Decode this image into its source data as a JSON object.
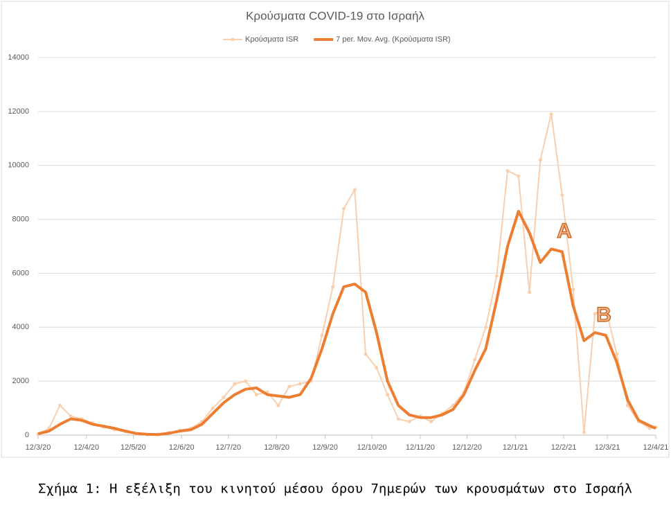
{
  "chart_data": {
    "type": "line",
    "title": "Κρούσματα COVID-19 στο Ισραήλ",
    "caption": "Σχήμα 1: Η εξέλιξη του κινητού μέσου όρου 7ημερών των κρουσμάτων στο Ισραήλ",
    "annotations": [
      "A",
      "B"
    ],
    "x": [
      "2020-03-12",
      "2020-03-19",
      "2020-03-26",
      "2020-04-02",
      "2020-04-09",
      "2020-04-16",
      "2020-04-23",
      "2020-04-30",
      "2020-05-07",
      "2020-05-14",
      "2020-05-21",
      "2020-05-28",
      "2020-06-04",
      "2020-06-11",
      "2020-06-18",
      "2020-06-25",
      "2020-07-02",
      "2020-07-09",
      "2020-07-16",
      "2020-07-23",
      "2020-07-30",
      "2020-08-06",
      "2020-08-13",
      "2020-08-20",
      "2020-08-27",
      "2020-09-03",
      "2020-09-10",
      "2020-09-17",
      "2020-09-24",
      "2020-10-01",
      "2020-10-08",
      "2020-10-15",
      "2020-10-22",
      "2020-10-29",
      "2020-11-05",
      "2020-11-12",
      "2020-11-19",
      "2020-11-26",
      "2020-12-03",
      "2020-12-10",
      "2020-12-17",
      "2020-12-24",
      "2020-12-31",
      "2021-01-07",
      "2021-01-14",
      "2021-01-21",
      "2021-01-28",
      "2021-02-04",
      "2021-02-11",
      "2021-02-18",
      "2021-02-25",
      "2021-03-04",
      "2021-03-11",
      "2021-03-18",
      "2021-03-25",
      "2021-04-01",
      "2021-04-08",
      "2021-04-12"
    ],
    "series": [
      {
        "name": "Κρούσματα ISR",
        "color": "#f9cfae",
        "marker": true,
        "width": 2,
        "values": [
          30,
          250,
          1100,
          700,
          600,
          450,
          300,
          200,
          120,
          40,
          20,
          30,
          90,
          180,
          250,
          500,
          1000,
          1400,
          1900,
          2000,
          1500,
          1600,
          1100,
          1800,
          1900,
          2000,
          3700,
          5500,
          8400,
          9100,
          3000,
          2500,
          1500,
          600,
          500,
          700,
          500,
          800,
          1100,
          1600,
          2800,
          4000,
          5900,
          9800,
          9600,
          5300,
          10200,
          11900,
          8900,
          5400,
          100,
          4500,
          4700,
          3000,
          1100,
          500,
          250,
          300
        ]
      },
      {
        "name": "7 per. Mov. Avg. (Κρούσματα ISR)",
        "color": "#ed7d31",
        "marker": false,
        "width": 4,
        "values": [
          50,
          150,
          400,
          600,
          550,
          400,
          330,
          250,
          150,
          60,
          30,
          20,
          70,
          150,
          200,
          400,
          800,
          1200,
          1500,
          1700,
          1750,
          1500,
          1450,
          1400,
          1500,
          2100,
          3200,
          4500,
          5500,
          5600,
          5300,
          3800,
          2000,
          1100,
          750,
          650,
          650,
          750,
          950,
          1500,
          2400,
          3200,
          5000,
          7000,
          8300,
          7500,
          6400,
          6900,
          6800,
          4800,
          3500,
          3800,
          3700,
          2700,
          1300,
          550,
          350,
          250
        ]
      }
    ],
    "xlim": [
      "2020-03-12",
      "2021-04-12"
    ],
    "xticks": [
      {
        "value": "2020-03-12",
        "label": "12/3/20"
      },
      {
        "value": "2020-04-12",
        "label": "12/4/20"
      },
      {
        "value": "2020-05-12",
        "label": "12/5/20"
      },
      {
        "value": "2020-06-12",
        "label": "12/6/20"
      },
      {
        "value": "2020-07-12",
        "label": "12/7/20"
      },
      {
        "value": "2020-08-12",
        "label": "12/8/20"
      },
      {
        "value": "2020-09-12",
        "label": "12/9/20"
      },
      {
        "value": "2020-10-12",
        "label": "12/10/20"
      },
      {
        "value": "2020-11-12",
        "label": "12/11/20"
      },
      {
        "value": "2020-12-12",
        "label": "12/12/20"
      },
      {
        "value": "2021-01-12",
        "label": "12/1/21"
      },
      {
        "value": "2021-02-12",
        "label": "12/2/21"
      },
      {
        "value": "2021-03-12",
        "label": "12/3/21"
      },
      {
        "value": "2021-04-12",
        "label": "12/4/21"
      }
    ],
    "ylim": [
      0,
      14000
    ],
    "yticks": [
      0,
      2000,
      4000,
      6000,
      8000,
      10000,
      12000,
      14000
    ],
    "grid": true,
    "legend": "top"
  }
}
